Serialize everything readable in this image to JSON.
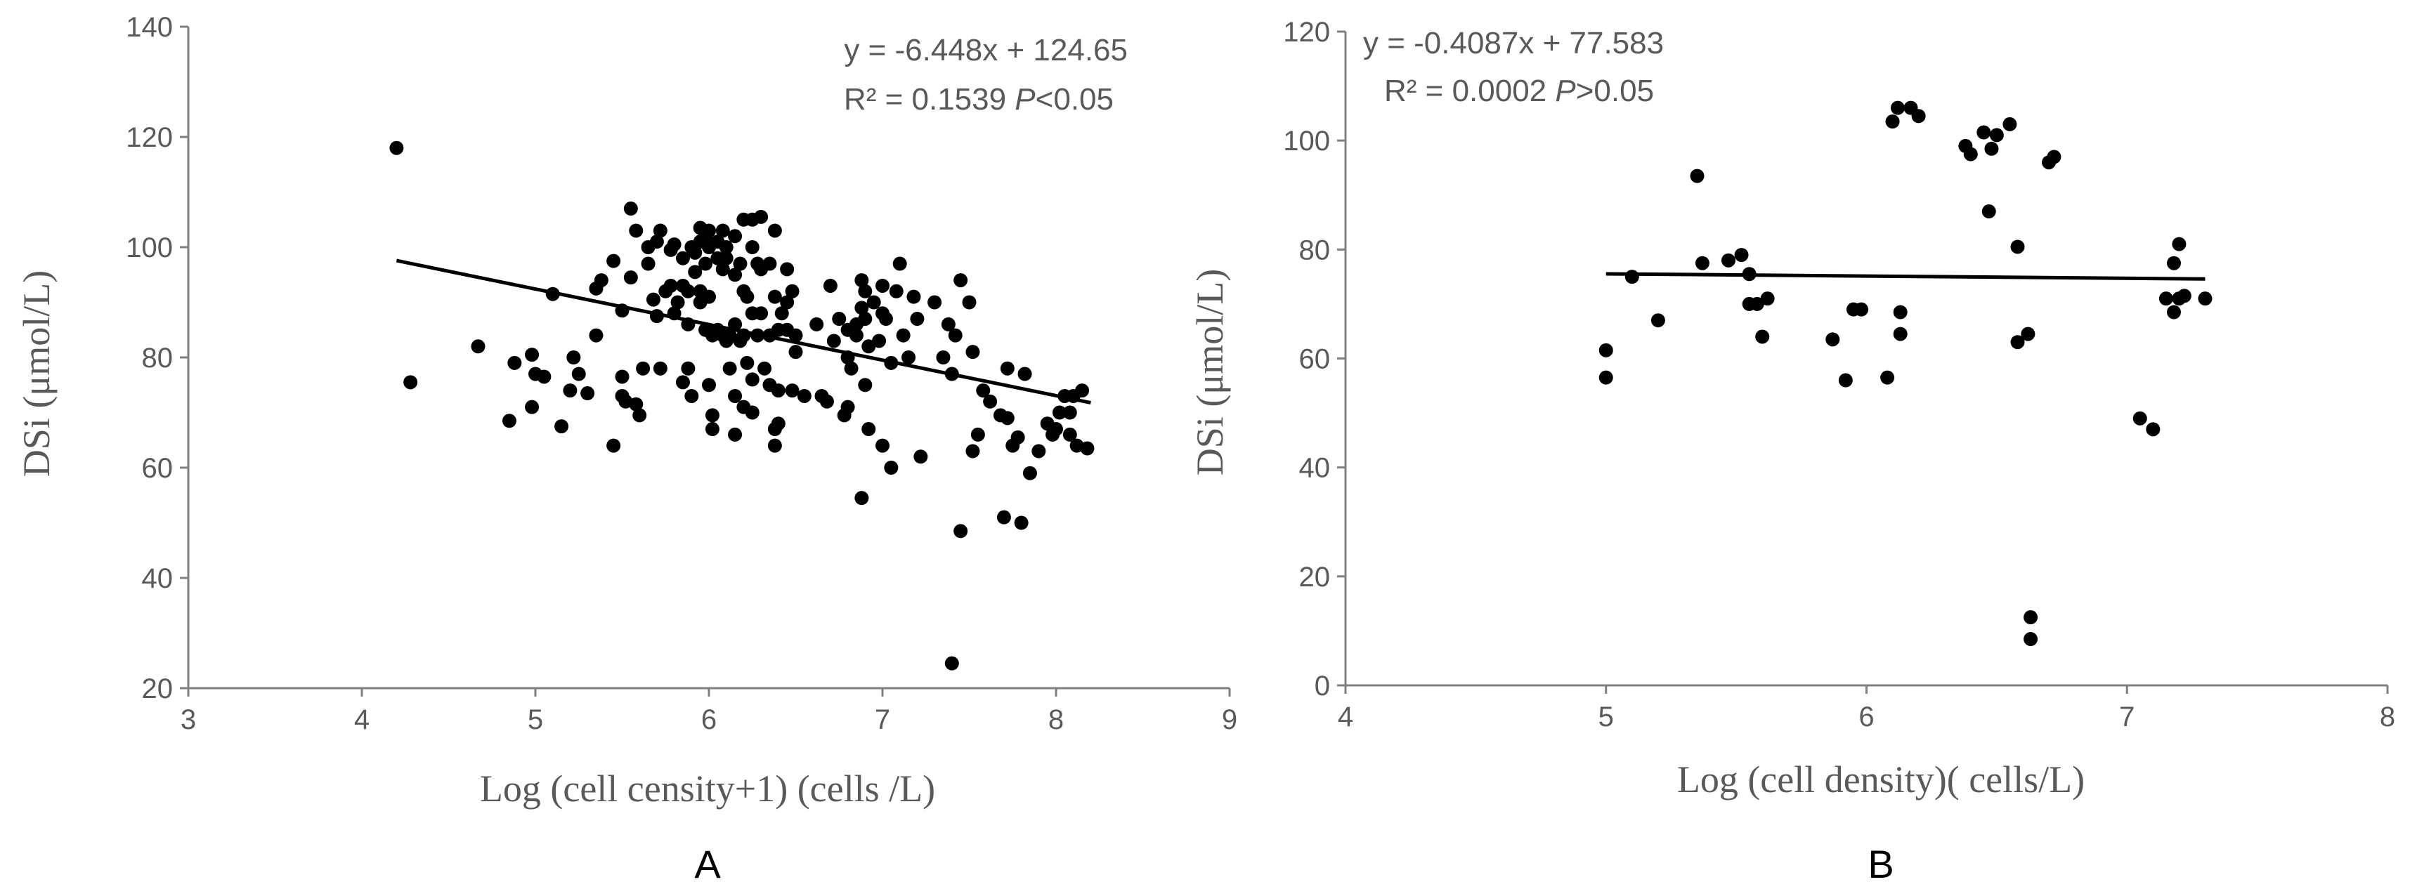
{
  "chart_data": [
    {
      "type": "scatter",
      "panel_label": "A",
      "xlabel": "Log (cell censity+1) (cells /L)",
      "ylabel": "DSi (μmol/L)",
      "xlim": [
        3,
        9
      ],
      "ylim": [
        20,
        140
      ],
      "xticks": [
        3,
        4,
        5,
        6,
        7,
        8,
        9
      ],
      "yticks": [
        20,
        40,
        60,
        80,
        100,
        120,
        140
      ],
      "annotation": {
        "equation": "y = -6.448x + 124.65",
        "r2_text": "R² = 0.1539 ",
        "p_letter": "P",
        "p_rest": "<0.05"
      },
      "trendline": {
        "slope": -6.448,
        "intercept": 124.65,
        "x_range": [
          4.2,
          8.2
        ]
      },
      "colors": {
        "points": "#000000",
        "line": "#000000",
        "axis": "#808080",
        "text": "#595959"
      },
      "points": [
        [
          4.2,
          118
        ],
        [
          4.28,
          75.5
        ],
        [
          4.67,
          82
        ],
        [
          4.85,
          68.5
        ],
        [
          4.88,
          79
        ],
        [
          4.98,
          80.5
        ],
        [
          5.0,
          77
        ],
        [
          5.05,
          76.5
        ],
        [
          4.98,
          71
        ],
        [
          5.1,
          91.5
        ],
        [
          5.15,
          67.5
        ],
        [
          5.2,
          74
        ],
        [
          5.22,
          80
        ],
        [
          5.25,
          77
        ],
        [
          5.3,
          73.5
        ],
        [
          5.35,
          84
        ],
        [
          5.35,
          92.5
        ],
        [
          5.38,
          94
        ],
        [
          5.45,
          97.5
        ],
        [
          5.45,
          64
        ],
        [
          5.5,
          88.5
        ],
        [
          5.5,
          76.5
        ],
        [
          5.5,
          73
        ],
        [
          5.52,
          72
        ],
        [
          5.55,
          94.5
        ],
        [
          5.55,
          107
        ],
        [
          5.58,
          103
        ],
        [
          5.58,
          71.5
        ],
        [
          5.6,
          69.5
        ],
        [
          5.62,
          78
        ],
        [
          5.65,
          100
        ],
        [
          5.65,
          97
        ],
        [
          5.68,
          90.5
        ],
        [
          5.7,
          101
        ],
        [
          5.7,
          87.5
        ],
        [
          5.72,
          103
        ],
        [
          5.72,
          78
        ],
        [
          5.75,
          92
        ],
        [
          5.78,
          99.5
        ],
        [
          5.78,
          93
        ],
        [
          5.8,
          100.5
        ],
        [
          5.8,
          88
        ],
        [
          5.82,
          90
        ],
        [
          5.85,
          98
        ],
        [
          5.85,
          93
        ],
        [
          5.85,
          75.5
        ],
        [
          5.88,
          92
        ],
        [
          5.88,
          86
        ],
        [
          5.88,
          78
        ],
        [
          5.9,
          100
        ],
        [
          5.9,
          73
        ],
        [
          5.92,
          99
        ],
        [
          5.92,
          95.5
        ],
        [
          5.95,
          103.5
        ],
        [
          5.95,
          101
        ],
        [
          5.95,
          92
        ],
        [
          5.95,
          90
        ],
        [
          5.98,
          102
        ],
        [
          5.98,
          97
        ],
        [
          5.98,
          85
        ],
        [
          6.0,
          103
        ],
        [
          6.0,
          100
        ],
        [
          6.0,
          91
        ],
        [
          6.0,
          75
        ],
        [
          6.02,
          84
        ],
        [
          6.02,
          69.5
        ],
        [
          6.02,
          67
        ],
        [
          6.05,
          101
        ],
        [
          6.05,
          98
        ],
        [
          6.05,
          85
        ],
        [
          6.08,
          103
        ],
        [
          6.08,
          96
        ],
        [
          6.08,
          84
        ],
        [
          6.1,
          100
        ],
        [
          6.1,
          98
        ],
        [
          6.1,
          83
        ],
        [
          6.12,
          84
        ],
        [
          6.12,
          78
        ],
        [
          6.15,
          102
        ],
        [
          6.15,
          95
        ],
        [
          6.15,
          86
        ],
        [
          6.15,
          73
        ],
        [
          6.15,
          66
        ],
        [
          6.18,
          97
        ],
        [
          6.18,
          83
        ],
        [
          6.2,
          105
        ],
        [
          6.2,
          92
        ],
        [
          6.2,
          84
        ],
        [
          6.2,
          71
        ],
        [
          6.22,
          91
        ],
        [
          6.22,
          79
        ],
        [
          6.25,
          105
        ],
        [
          6.25,
          100
        ],
        [
          6.25,
          88
        ],
        [
          6.25,
          76
        ],
        [
          6.25,
          70
        ],
        [
          6.28,
          97
        ],
        [
          6.28,
          84
        ],
        [
          6.3,
          105.5
        ],
        [
          6.3,
          96
        ],
        [
          6.3,
          88
        ],
        [
          6.32,
          78
        ],
        [
          6.35,
          97
        ],
        [
          6.35,
          84
        ],
        [
          6.35,
          75
        ],
        [
          6.38,
          103
        ],
        [
          6.38,
          91
        ],
        [
          6.38,
          67
        ],
        [
          6.38,
          64
        ],
        [
          6.4,
          85
        ],
        [
          6.4,
          74
        ],
        [
          6.4,
          68
        ],
        [
          6.42,
          88
        ],
        [
          6.45,
          96
        ],
        [
          6.45,
          90
        ],
        [
          6.45,
          85
        ],
        [
          6.48,
          92
        ],
        [
          6.48,
          74
        ],
        [
          6.5,
          84
        ],
        [
          6.5,
          81
        ],
        [
          6.55,
          73
        ],
        [
          6.62,
          86
        ],
        [
          6.65,
          73
        ],
        [
          6.68,
          72
        ],
        [
          6.7,
          93
        ],
        [
          6.72,
          83
        ],
        [
          6.75,
          87
        ],
        [
          6.78,
          69.5
        ],
        [
          6.8,
          85
        ],
        [
          6.8,
          80
        ],
        [
          6.8,
          71
        ],
        [
          6.82,
          78
        ],
        [
          6.85,
          86
        ],
        [
          6.85,
          84
        ],
        [
          6.88,
          94
        ],
        [
          6.88,
          89
        ],
        [
          6.88,
          54.5
        ],
        [
          6.9,
          92
        ],
        [
          6.9,
          87
        ],
        [
          6.9,
          75
        ],
        [
          6.92,
          82
        ],
        [
          6.92,
          67
        ],
        [
          6.95,
          90
        ],
        [
          6.98,
          83
        ],
        [
          7.0,
          93
        ],
        [
          7.0,
          88
        ],
        [
          7.0,
          64
        ],
        [
          7.02,
          87
        ],
        [
          7.05,
          79
        ],
        [
          7.05,
          60
        ],
        [
          7.08,
          92
        ],
        [
          7.1,
          97
        ],
        [
          7.12,
          84
        ],
        [
          7.15,
          80
        ],
        [
          7.18,
          91
        ],
        [
          7.2,
          87
        ],
        [
          7.22,
          62
        ],
        [
          7.3,
          90
        ],
        [
          7.35,
          80
        ],
        [
          7.38,
          86
        ],
        [
          7.4,
          77
        ],
        [
          7.4,
          24.5
        ],
        [
          7.42,
          84
        ],
        [
          7.45,
          94
        ],
        [
          7.45,
          48.5
        ],
        [
          7.5,
          90
        ],
        [
          7.52,
          81
        ],
        [
          7.52,
          63
        ],
        [
          7.55,
          66
        ],
        [
          7.58,
          74
        ],
        [
          7.62,
          72
        ],
        [
          7.68,
          69.5
        ],
        [
          7.7,
          51
        ],
        [
          7.72,
          69
        ],
        [
          7.72,
          78
        ],
        [
          7.75,
          64
        ],
        [
          7.78,
          65.5
        ],
        [
          7.8,
          50
        ],
        [
          7.82,
          77
        ],
        [
          7.85,
          59
        ],
        [
          7.9,
          63
        ],
        [
          7.95,
          68
        ],
        [
          7.98,
          66
        ],
        [
          8.0,
          67
        ],
        [
          8.02,
          70
        ],
        [
          8.05,
          73
        ],
        [
          8.08,
          70
        ],
        [
          8.08,
          66
        ],
        [
          8.1,
          73
        ],
        [
          8.12,
          64
        ],
        [
          8.15,
          74
        ],
        [
          8.18,
          63.5
        ]
      ]
    },
    {
      "type": "scatter",
      "panel_label": "B",
      "xlabel": "Log (cell density)( cells/L)",
      "ylabel": "DSi (μmol/L)",
      "xlim": [
        4,
        8
      ],
      "ylim": [
        0,
        120
      ],
      "xticks": [
        4,
        5,
        6,
        7,
        8
      ],
      "yticks": [
        0,
        20,
        40,
        60,
        80,
        100,
        120
      ],
      "annotation": {
        "equation": "y = -0.4087x + 77.583",
        "r2_text": "R² = 0.0002 ",
        "p_letter": "P",
        "p_rest": ">0.05"
      },
      "trendline": {
        "slope": -0.4087,
        "intercept": 77.583,
        "x_range": [
          5.0,
          7.3
        ]
      },
      "colors": {
        "points": "#000000",
        "line": "#000000",
        "axis": "#808080",
        "text": "#595959"
      },
      "points": [
        [
          5.0,
          61.5
        ],
        [
          5.0,
          56.5
        ],
        [
          5.1,
          75
        ],
        [
          5.2,
          67
        ],
        [
          5.35,
          93.5
        ],
        [
          5.37,
          77.5
        ],
        [
          5.47,
          78
        ],
        [
          5.52,
          79
        ],
        [
          5.55,
          75.5
        ],
        [
          5.55,
          70
        ],
        [
          5.58,
          70
        ],
        [
          5.6,
          64
        ],
        [
          5.62,
          71
        ],
        [
          5.87,
          63.5
        ],
        [
          5.92,
          56
        ],
        [
          5.95,
          69
        ],
        [
          5.98,
          69
        ],
        [
          6.08,
          56.5
        ],
        [
          6.1,
          103.5
        ],
        [
          6.12,
          106
        ],
        [
          6.13,
          68.5
        ],
        [
          6.13,
          64.5
        ],
        [
          6.17,
          106
        ],
        [
          6.2,
          104.5
        ],
        [
          6.38,
          99
        ],
        [
          6.4,
          97.5
        ],
        [
          6.45,
          101.5
        ],
        [
          6.47,
          87
        ],
        [
          6.48,
          98.5
        ],
        [
          6.5,
          101
        ],
        [
          6.55,
          103
        ],
        [
          6.58,
          80.5
        ],
        [
          6.58,
          63
        ],
        [
          6.62,
          64.5
        ],
        [
          6.63,
          12.5
        ],
        [
          6.63,
          8.5
        ],
        [
          6.7,
          96
        ],
        [
          6.72,
          97
        ],
        [
          7.05,
          49
        ],
        [
          7.1,
          47
        ],
        [
          7.15,
          71
        ],
        [
          7.18,
          77.5
        ],
        [
          7.18,
          68.5
        ],
        [
          7.2,
          81
        ],
        [
          7.2,
          71
        ],
        [
          7.22,
          71.5
        ],
        [
          7.3,
          71
        ]
      ]
    }
  ]
}
